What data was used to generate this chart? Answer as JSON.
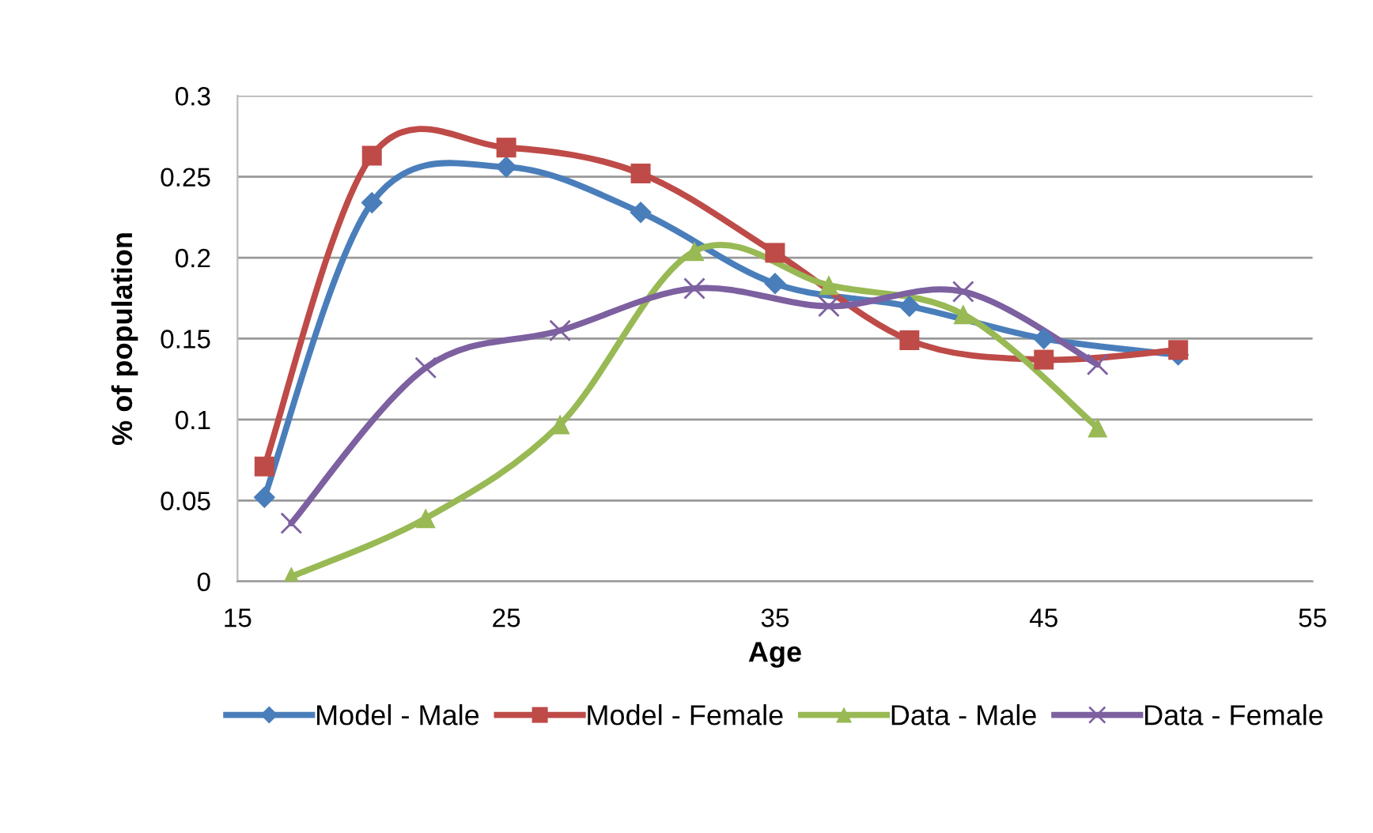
{
  "chart_data": {
    "type": "line",
    "xlabel": "Age",
    "ylabel": "% of population",
    "xlim": [
      15,
      55
    ],
    "xticks": [
      15,
      25,
      35,
      45,
      55
    ],
    "ylim": [
      0,
      0.3
    ],
    "yticks": [
      0,
      0.05,
      0.1,
      0.15,
      0.2,
      0.25,
      0.3
    ],
    "grid": "y",
    "legend": "bottom",
    "line_style": "solid",
    "series": [
      {
        "name": "Model - Male",
        "color": "#4a7ebb",
        "marker": "diamond",
        "x": [
          16,
          20,
          25,
          30,
          35,
          40,
          45,
          50
        ],
        "values": [
          0.052,
          0.234,
          0.256,
          0.228,
          0.184,
          0.17,
          0.15,
          0.14
        ]
      },
      {
        "name": "Model - Female",
        "color": "#be4b48",
        "marker": "square",
        "x": [
          16,
          20,
          25,
          30,
          35,
          40,
          45,
          50
        ],
        "values": [
          0.071,
          0.263,
          0.268,
          0.252,
          0.203,
          0.149,
          0.137,
          0.143
        ]
      },
      {
        "name": "Data - Male",
        "color": "#98b954",
        "marker": "triangle",
        "x": [
          17,
          22,
          27,
          32,
          37,
          42,
          47
        ],
        "values": [
          0.003,
          0.039,
          0.097,
          0.204,
          0.183,
          0.165,
          0.095
        ]
      },
      {
        "name": "Data - Female",
        "color": "#7d60a0",
        "marker": "cross",
        "x": [
          17,
          22,
          27,
          32,
          37,
          42,
          47
        ],
        "values": [
          0.036,
          0.132,
          0.155,
          0.181,
          0.17,
          0.179,
          0.134
        ]
      }
    ]
  }
}
